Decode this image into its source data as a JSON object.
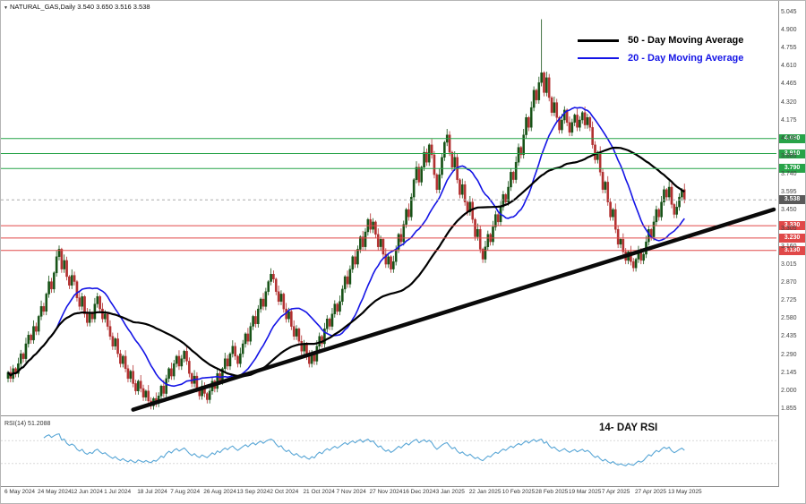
{
  "window": {
    "marker": "▼",
    "title": "NATURAL_GAS,Daily 3.540 3.650 3.516 3.538"
  },
  "legend": {
    "items": [
      {
        "label": "50 - Day Moving Average",
        "color": "#000000"
      },
      {
        "label": "20 - Day Moving Average",
        "color": "#1414e6"
      }
    ]
  },
  "rsi": {
    "indicator_label": "RSI(14) 51.2088",
    "annotation": "14- DAY RSI",
    "value": 51.2088
  },
  "chart_data": {
    "type": "candlestick",
    "symbol": "NATURAL_GAS",
    "timeframe": "Daily",
    "title": "NATURAL_GAS Daily candlestick chart with 50/20-day moving averages, support/resistance levels, rising trendline and 14-day RSI",
    "ylim": [
      1.84,
      5.08
    ],
    "y_ticks": [
      "5.045",
      "4.900",
      "4.755",
      "4.610",
      "4.465",
      "4.320",
      "4.175",
      "4.030",
      "3.885",
      "3.740",
      "3.595",
      "3.450",
      "3.305",
      "3.160",
      "3.015",
      "2.870",
      "2.725",
      "2.580",
      "2.435",
      "2.290",
      "2.145",
      "2.000",
      "1.855"
    ],
    "x_labels": [
      "6 May 2024",
      "24 May 2024",
      "12 Jun 2024",
      "1 Jul 2024",
      "18 Jul 2024",
      "7 Aug 2024",
      "26 Aug 2024",
      "13 Sep 2024",
      "2 Oct 2024",
      "21 Oct 2024",
      "7 Nov 2024",
      "27 Nov 2024",
      "16 Dec 2024",
      "3 Jan 2025",
      "22 Jan 2025",
      "10 Feb 2025",
      "28 Feb 2025",
      "19 Mar 2025",
      "7 Apr 2025",
      "27 Apr 2025",
      "13 May 2025"
    ],
    "label_every": 13,
    "closes": [
      2.15,
      2.1,
      2.18,
      2.14,
      2.22,
      2.3,
      2.26,
      2.38,
      2.45,
      2.41,
      2.52,
      2.48,
      2.6,
      2.68,
      2.64,
      2.78,
      2.88,
      2.82,
      2.95,
      3.08,
      3.14,
      2.98,
      3.05,
      2.92,
      2.85,
      2.93,
      2.88,
      2.75,
      2.68,
      2.76,
      2.62,
      2.55,
      2.63,
      2.58,
      2.7,
      2.76,
      2.66,
      2.58,
      2.62,
      2.52,
      2.44,
      2.36,
      2.42,
      2.3,
      2.22,
      2.28,
      2.18,
      2.1,
      2.16,
      2.06,
      2.0,
      2.08,
      2.02,
      1.95,
      2.0,
      1.92,
      1.88,
      1.94,
      1.9,
      1.96,
      2.04,
      1.98,
      2.1,
      2.18,
      2.12,
      2.22,
      2.28,
      2.2,
      2.26,
      2.32,
      2.24,
      2.14,
      2.06,
      2.12,
      2.02,
      1.96,
      2.04,
      1.98,
      1.93,
      2.0,
      2.08,
      2.02,
      2.14,
      2.08,
      2.18,
      2.26,
      2.2,
      2.3,
      2.36,
      2.28,
      2.22,
      2.3,
      2.38,
      2.46,
      2.4,
      2.52,
      2.6,
      2.54,
      2.66,
      2.74,
      2.68,
      2.8,
      2.88,
      2.94,
      2.9,
      2.8,
      2.72,
      2.78,
      2.66,
      2.58,
      2.64,
      2.52,
      2.44,
      2.5,
      2.4,
      2.32,
      2.38,
      2.28,
      2.22,
      2.3,
      2.24,
      2.36,
      2.44,
      2.38,
      2.5,
      2.58,
      2.52,
      2.62,
      2.7,
      2.64,
      2.72,
      2.82,
      2.92,
      2.86,
      2.98,
      3.08,
      3.02,
      3.14,
      3.24,
      3.16,
      3.28,
      3.38,
      3.3,
      3.36,
      3.26,
      3.16,
      3.22,
      3.1,
      3.02,
      3.08,
      2.98,
      3.04,
      3.14,
      3.26,
      3.2,
      3.34,
      3.46,
      3.4,
      3.56,
      3.7,
      3.8,
      3.68,
      3.8,
      3.92,
      3.84,
      3.98,
      3.9,
      3.74,
      3.62,
      3.74,
      3.88,
      4.0,
      4.06,
      3.92,
      3.8,
      3.88,
      3.7,
      3.58,
      3.66,
      3.52,
      3.44,
      3.52,
      3.38,
      3.24,
      3.3,
      3.14,
      3.06,
      3.16,
      3.26,
      3.2,
      3.32,
      3.42,
      3.36,
      3.48,
      3.58,
      3.52,
      3.64,
      3.76,
      3.7,
      3.84,
      3.96,
      3.9,
      4.06,
      4.2,
      4.12,
      4.28,
      4.42,
      4.34,
      4.48,
      4.56,
      4.4,
      4.52,
      4.36,
      4.24,
      4.32,
      4.2,
      4.1,
      4.18,
      4.26,
      4.16,
      4.08,
      4.16,
      4.22,
      4.12,
      4.18,
      4.24,
      4.14,
      4.2,
      4.12,
      3.98,
      3.86,
      3.92,
      3.76,
      3.62,
      3.68,
      3.52,
      3.4,
      3.46,
      3.3,
      3.18,
      3.22,
      3.12,
      3.05,
      3.12,
      3.04,
      2.99,
      3.06,
      3.12,
      3.05,
      3.1,
      3.2,
      3.3,
      3.24,
      3.36,
      3.46,
      3.4,
      3.52,
      3.62,
      3.56,
      3.64,
      3.5,
      3.42,
      3.48,
      3.56,
      3.62,
      3.54
    ],
    "wick_overrides": [
      {
        "index": 209,
        "high": 4.99
      },
      {
        "index": 56,
        "low": 1.853
      }
    ],
    "candle_up_color": "#165216",
    "candle_down_color": "#b23030",
    "moving_averages": [
      {
        "period": 50,
        "color": "#000000",
        "width": 2.2,
        "name": "50 - Day Moving Average"
      },
      {
        "period": 20,
        "color": "#1414e6",
        "width": 1.6,
        "name": "20 - Day Moving Average"
      }
    ],
    "levels": {
      "resistance": {
        "color": "#27a348",
        "prices": [
          4.03,
          3.91,
          3.79
        ]
      },
      "support": {
        "color": "#e04848",
        "prices": [
          3.33,
          3.23,
          3.13
        ]
      },
      "current": {
        "price": 3.538,
        "label": "3.538",
        "color": "#5a5a5a"
      }
    },
    "trendline": {
      "from_index": 49,
      "from_price": 1.85,
      "to_index": 300,
      "to_price": 3.46,
      "color": "#0a0a0a",
      "width": 4.5
    },
    "rsi": {
      "period": 14,
      "color": "#58a6d6",
      "levels": [
        30,
        70
      ]
    }
  }
}
